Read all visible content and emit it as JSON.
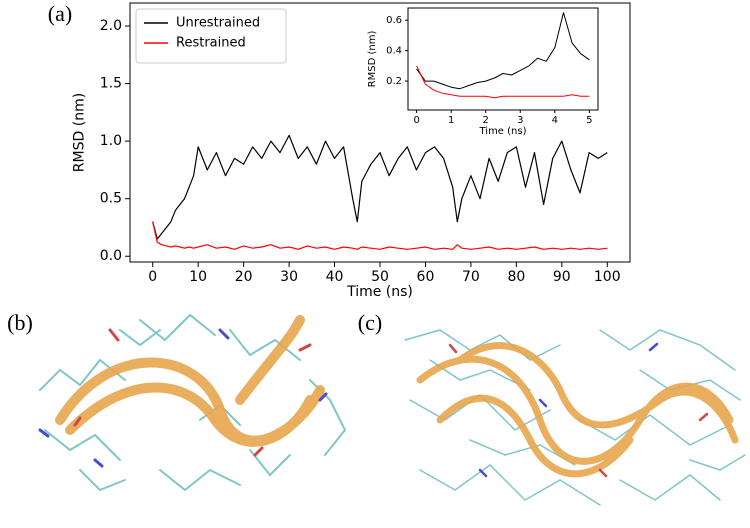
{
  "panels": [
    "(a)",
    "(b)",
    "(c)"
  ],
  "chart_data": [
    {
      "type": "line",
      "xlabel": "Time (ns)",
      "ylabel": "RMSD (nm)",
      "x": [
        0,
        1,
        2,
        3,
        4,
        5,
        6,
        7,
        8,
        9,
        10,
        12,
        14,
        16,
        18,
        20,
        22,
        24,
        26,
        28,
        30,
        32,
        34,
        36,
        38,
        40,
        42,
        44,
        45,
        46,
        48,
        50,
        52,
        54,
        56,
        58,
        60,
        62,
        64,
        66,
        67,
        68,
        70,
        72,
        74,
        76,
        78,
        80,
        82,
        84,
        86,
        88,
        90,
        92,
        94,
        96,
        98,
        100
      ],
      "series": [
        {
          "name": "Unrestrained",
          "color": "#000000",
          "values": [
            0.3,
            0.15,
            0.2,
            0.25,
            0.3,
            0.4,
            0.45,
            0.5,
            0.6,
            0.7,
            0.95,
            0.75,
            0.9,
            0.7,
            0.85,
            0.8,
            0.95,
            0.85,
            1.0,
            0.9,
            1.05,
            0.85,
            0.95,
            0.8,
            1.0,
            0.85,
            0.95,
            0.5,
            0.3,
            0.65,
            0.8,
            0.9,
            0.7,
            0.85,
            0.95,
            0.75,
            0.9,
            0.95,
            0.85,
            0.6,
            0.3,
            0.5,
            0.7,
            0.5,
            0.85,
            0.65,
            0.9,
            0.95,
            0.6,
            0.9,
            0.45,
            0.85,
            1.0,
            0.75,
            0.55,
            0.9,
            0.85,
            0.9
          ]
        },
        {
          "name": "Restrained",
          "color": "#ff0000",
          "values": [
            0.3,
            0.12,
            0.1,
            0.09,
            0.08,
            0.09,
            0.08,
            0.07,
            0.08,
            0.07,
            0.08,
            0.1,
            0.07,
            0.08,
            0.06,
            0.09,
            0.07,
            0.08,
            0.1,
            0.07,
            0.08,
            0.06,
            0.09,
            0.07,
            0.08,
            0.06,
            0.08,
            0.07,
            0.06,
            0.08,
            0.07,
            0.06,
            0.08,
            0.07,
            0.06,
            0.07,
            0.08,
            0.06,
            0.07,
            0.06,
            0.1,
            0.07,
            0.06,
            0.07,
            0.08,
            0.06,
            0.07,
            0.06,
            0.07,
            0.08,
            0.06,
            0.07,
            0.06,
            0.07,
            0.06,
            0.07,
            0.06,
            0.07
          ]
        }
      ],
      "xlim": [
        -5,
        105
      ],
      "ylim": [
        -0.05,
        2.2
      ],
      "xticks": [
        0,
        10,
        20,
        30,
        40,
        50,
        60,
        70,
        80,
        90,
        100
      ],
      "yticks": [
        {
          "value": 0,
          "label": "0.0"
        },
        0.5,
        {
          "value": 1,
          "label": "1.0"
        },
        1.5,
        {
          "value": 2,
          "label": "2.0"
        }
      ],
      "legend": "upper left",
      "grid": false
    },
    {
      "type": "line",
      "xlabel": "Time (ns)",
      "ylabel": "RMSD (nm)",
      "x": [
        0,
        0.25,
        0.5,
        0.75,
        1,
        1.25,
        1.5,
        1.75,
        2,
        2.25,
        2.5,
        2.75,
        3,
        3.25,
        3.5,
        3.75,
        4,
        4.25,
        4.5,
        4.75,
        5
      ],
      "series": [
        {
          "name": "Unrestrained",
          "color": "#000000",
          "values": [
            0.28,
            0.2,
            0.2,
            0.18,
            0.16,
            0.15,
            0.17,
            0.19,
            0.2,
            0.22,
            0.25,
            0.24,
            0.27,
            0.3,
            0.35,
            0.33,
            0.42,
            0.65,
            0.45,
            0.38,
            0.34
          ]
        },
        {
          "name": "Restrained",
          "color": "#ff0000",
          "values": [
            0.3,
            0.18,
            0.14,
            0.12,
            0.11,
            0.1,
            0.1,
            0.1,
            0.1,
            0.09,
            0.1,
            0.1,
            0.1,
            0.1,
            0.1,
            0.1,
            0.1,
            0.1,
            0.11,
            0.1,
            0.1
          ]
        }
      ],
      "xlim": [
        -0.25,
        5.25
      ],
      "ylim": [
        0.01,
        0.68
      ],
      "xticks": [
        0,
        1,
        2,
        3,
        4,
        5
      ],
      "yticks": [
        0.2,
        0.4,
        0.6
      ],
      "grid": false
    }
  ]
}
